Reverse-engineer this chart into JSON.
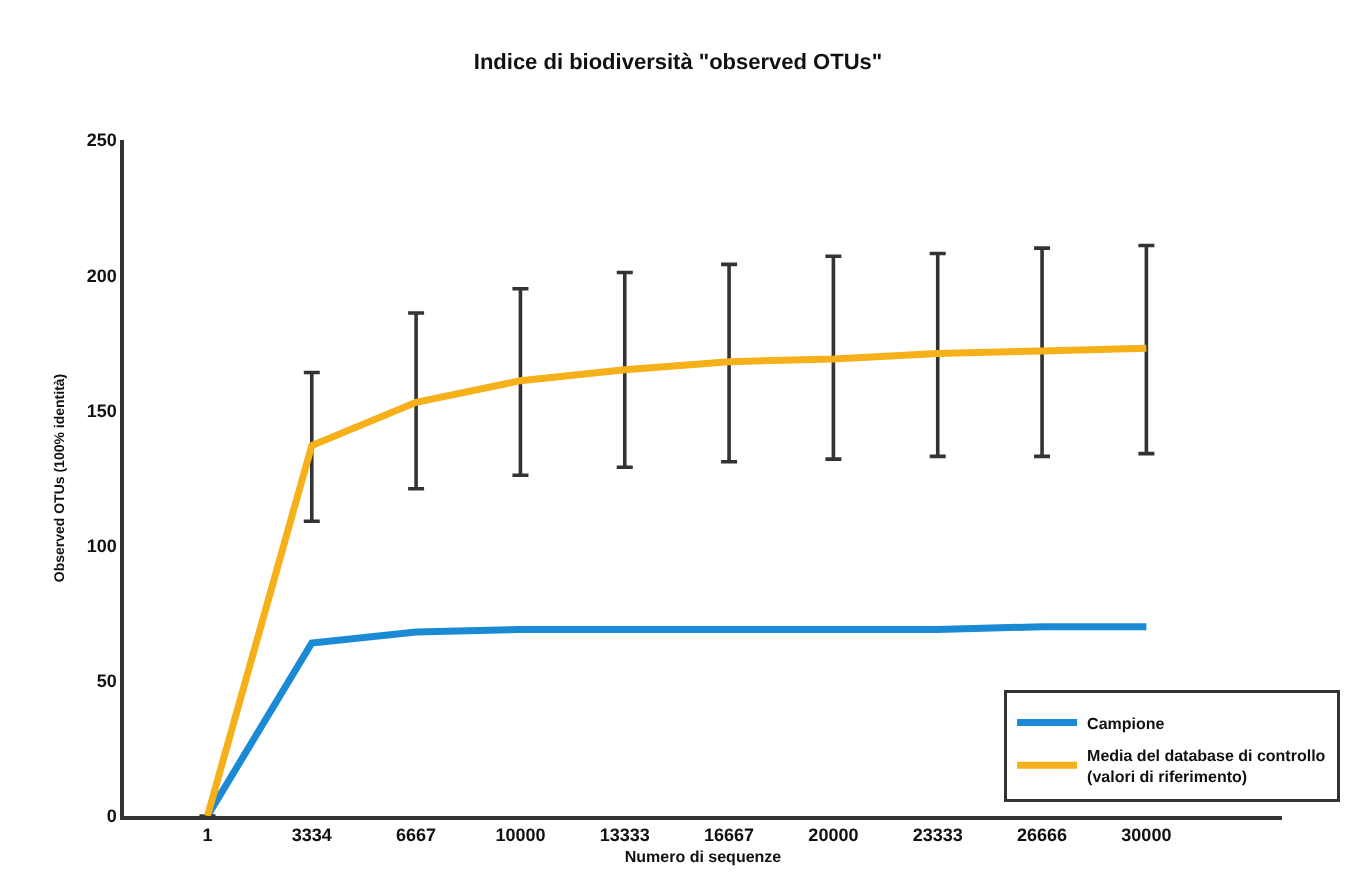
{
  "chart_data": {
    "type": "line",
    "title": "Indice di biodiversità \"observed OTUs\"",
    "xlabel": "Numero di sequenze",
    "ylabel": "Observed OTUs (100% identità)",
    "categories": [
      "1",
      "3334",
      "6667",
      "10000",
      "13333",
      "16667",
      "20000",
      "23333",
      "26666",
      "30000"
    ],
    "series": [
      {
        "name": "Campione",
        "color": "#1a8ad4",
        "values": [
          0,
          64,
          68,
          69,
          69,
          69,
          69,
          69,
          70,
          70
        ]
      },
      {
        "name": "Media del database di controllo (valori di riferimento)",
        "color": "#f5b01a",
        "values": [
          0,
          137,
          153,
          161,
          165,
          168,
          169,
          171,
          172,
          173
        ],
        "errors": [
          null,
          [
            109,
            164
          ],
          [
            121,
            186
          ],
          [
            126,
            195
          ],
          [
            129,
            201
          ],
          [
            131,
            204
          ],
          [
            132,
            207
          ],
          [
            133,
            208
          ],
          [
            133,
            210
          ],
          [
            134,
            211
          ]
        ]
      }
    ],
    "ylim": [
      0,
      250
    ],
    "yticks": [
      0,
      50,
      100,
      150,
      200,
      250
    ],
    "grid": false,
    "legend": "bottom right",
    "marker": "none",
    "line_style": "solid"
  }
}
